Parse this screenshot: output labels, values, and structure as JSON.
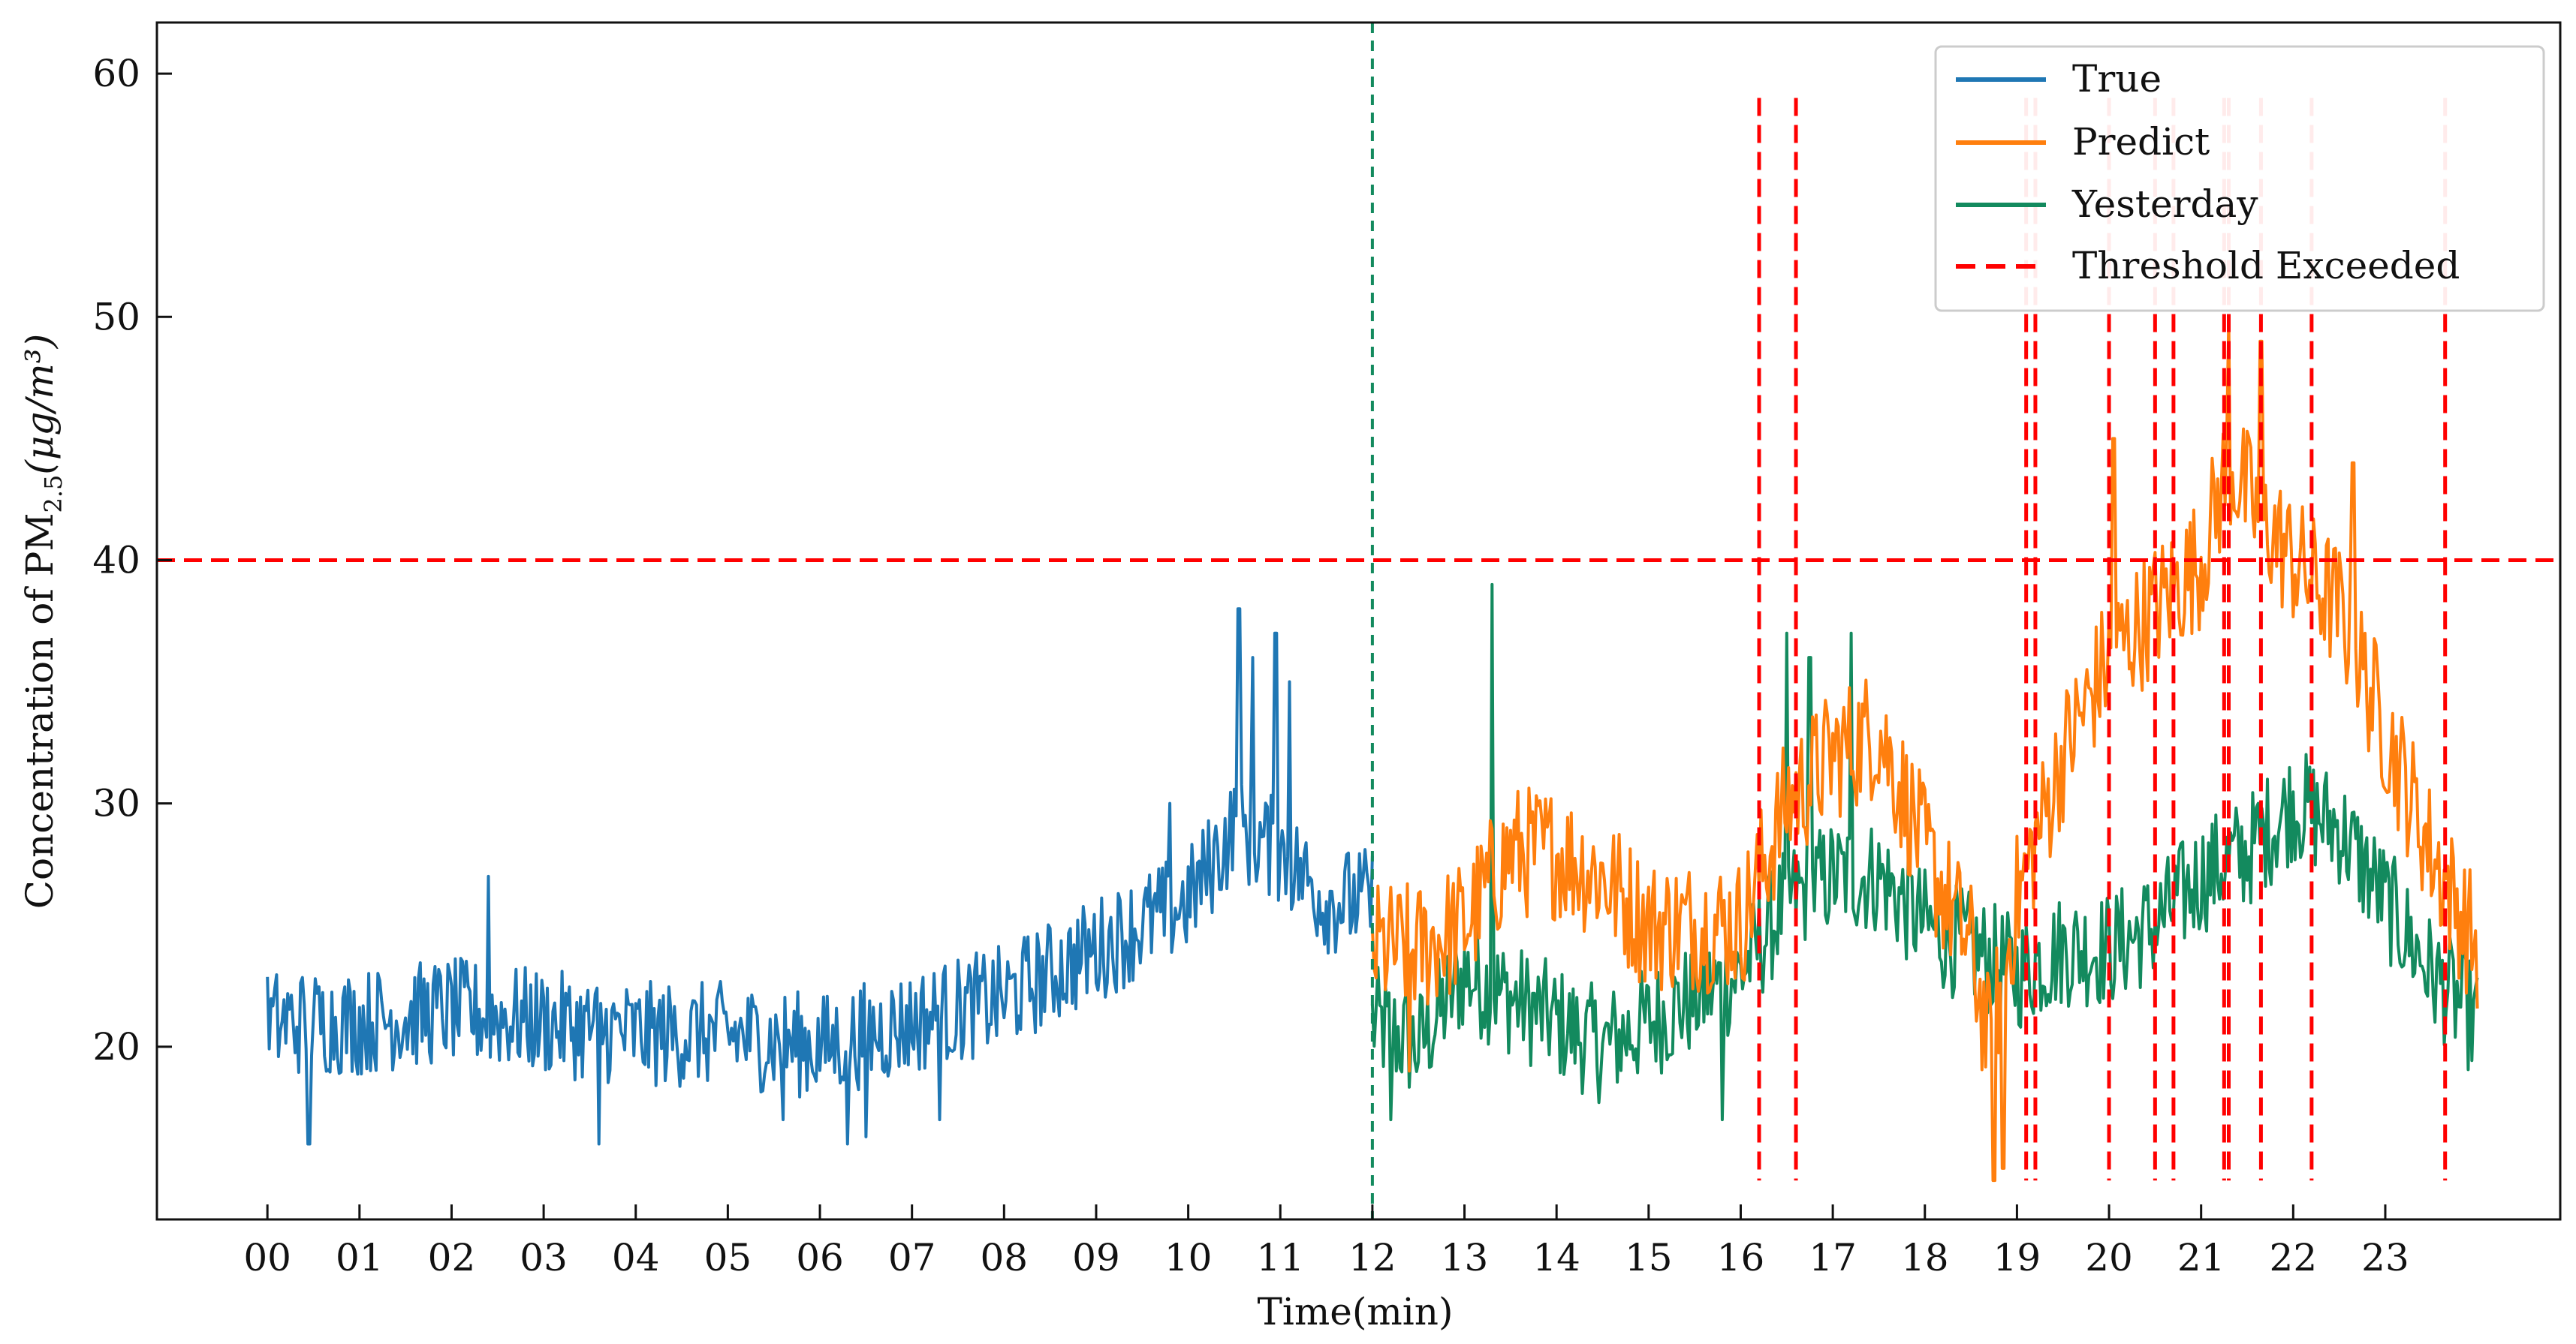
{
  "chart_data": {
    "type": "line",
    "title": "",
    "xlabel": "Time(min)",
    "ylabel_prefix": "Concentration  of  PM",
    "ylabel_sub": "2.5",
    "ylabel_unit": "(μg/m³)",
    "xlim": [
      -1.2,
      24.9
    ],
    "ylim": [
      12.9,
      62.1
    ],
    "x_ticks": [
      0,
      1,
      2,
      3,
      4,
      5,
      6,
      7,
      8,
      9,
      10,
      11,
      12,
      13,
      14,
      15,
      16,
      17,
      18,
      19,
      20,
      21,
      22,
      23
    ],
    "x_tick_labels": [
      "00",
      "01",
      "02",
      "03",
      "04",
      "05",
      "06",
      "07",
      "08",
      "09",
      "10",
      "11",
      "12",
      "13",
      "14",
      "15",
      "16",
      "17",
      "18",
      "19",
      "20",
      "21",
      "22",
      "23"
    ],
    "y_ticks": [
      20,
      30,
      40,
      50,
      60
    ],
    "y_tick_labels": [
      "20",
      "30",
      "40",
      "50",
      "60"
    ],
    "grid": false,
    "legend_position": "top-right",
    "colors": {
      "true": "#1f77b4",
      "predict": "#ff7f0e",
      "yesterday": "#138a5e",
      "threshold": "#ff0000",
      "split": "#138a5e"
    },
    "legend": [
      "True",
      "Predict",
      "Yesterday",
      "Threshold Exceeded"
    ],
    "threshold_y": 40,
    "split_x": 12,
    "threshold_exceeded_x": [
      16.2,
      16.6,
      19.1,
      19.2,
      20.0,
      20.5,
      20.7,
      21.25,
      21.3,
      21.65,
      22.2,
      23.65
    ],
    "threshold_line_range": [
      14.5,
      59
    ],
    "series": [
      {
        "name": "True",
        "x_range": [
          0,
          12
        ],
        "noise": 2.2,
        "envelope": [
          [
            0,
            21
          ],
          [
            1,
            21
          ],
          [
            2,
            21.5
          ],
          [
            3,
            21
          ],
          [
            4,
            20.5
          ],
          [
            5,
            20.5
          ],
          [
            6,
            20
          ],
          [
            7,
            21
          ],
          [
            8,
            22
          ],
          [
            9,
            24
          ],
          [
            10,
            26
          ],
          [
            10.5,
            29
          ],
          [
            11,
            28
          ],
          [
            11.5,
            26
          ],
          [
            12,
            26
          ]
        ],
        "peaks": [
          [
            0.45,
            16
          ],
          [
            2.4,
            27
          ],
          [
            3.6,
            16
          ],
          [
            5.6,
            17
          ],
          [
            6.3,
            16
          ],
          [
            6.5,
            16.3
          ],
          [
            7.3,
            17
          ],
          [
            9.8,
            30
          ],
          [
            10.55,
            38
          ],
          [
            10.7,
            36
          ],
          [
            10.95,
            37
          ],
          [
            11.1,
            35
          ]
        ]
      },
      {
        "name": "Predict",
        "x_range": [
          12,
          24
        ],
        "noise": 2.8,
        "envelope": [
          [
            12,
            24
          ],
          [
            12.5,
            24
          ],
          [
            13,
            25
          ],
          [
            13.5,
            28
          ],
          [
            14,
            28
          ],
          [
            14.5,
            27
          ],
          [
            15,
            25
          ],
          [
            15.5,
            25
          ],
          [
            16,
            25
          ],
          [
            16.5,
            30
          ],
          [
            17,
            32
          ],
          [
            17.5,
            33
          ],
          [
            18,
            28
          ],
          [
            18.5,
            24
          ],
          [
            18.7,
            20
          ],
          [
            19,
            26
          ],
          [
            19.5,
            32
          ],
          [
            20,
            36
          ],
          [
            20.5,
            38
          ],
          [
            21,
            40
          ],
          [
            21.3,
            44
          ],
          [
            21.6,
            42
          ],
          [
            22,
            40
          ],
          [
            22.5,
            38
          ],
          [
            23,
            33
          ],
          [
            23.5,
            28
          ],
          [
            24,
            24
          ]
        ],
        "peaks": [
          [
            12.4,
            19
          ],
          [
            18.75,
            14.5
          ],
          [
            18.85,
            15
          ],
          [
            20.05,
            45
          ],
          [
            21.3,
            50
          ],
          [
            21.65,
            49
          ],
          [
            22.65,
            44
          ]
        ]
      },
      {
        "name": "Yesterday",
        "x_range": [
          12,
          24
        ],
        "noise": 2.4,
        "envelope": [
          [
            12,
            21
          ],
          [
            12.5,
            20
          ],
          [
            13,
            23
          ],
          [
            13.5,
            22
          ],
          [
            14,
            21
          ],
          [
            14.5,
            20
          ],
          [
            15,
            21
          ],
          [
            15.5,
            22
          ],
          [
            16,
            23
          ],
          [
            16.5,
            26
          ],
          [
            17,
            27
          ],
          [
            17.5,
            27
          ],
          [
            18,
            25
          ],
          [
            18.5,
            24
          ],
          [
            19,
            23
          ],
          [
            19.5,
            24
          ],
          [
            20,
            24
          ],
          [
            20.5,
            25
          ],
          [
            21,
            27
          ],
          [
            21.5,
            28
          ],
          [
            22,
            30
          ],
          [
            22.5,
            29
          ],
          [
            23,
            26
          ],
          [
            23.5,
            23
          ],
          [
            24,
            21
          ]
        ],
        "peaks": [
          [
            13.3,
            39
          ],
          [
            16.5,
            37
          ],
          [
            16.75,
            36
          ],
          [
            17.2,
            37
          ],
          [
            12.2,
            17
          ],
          [
            15.8,
            17
          ]
        ]
      }
    ]
  }
}
